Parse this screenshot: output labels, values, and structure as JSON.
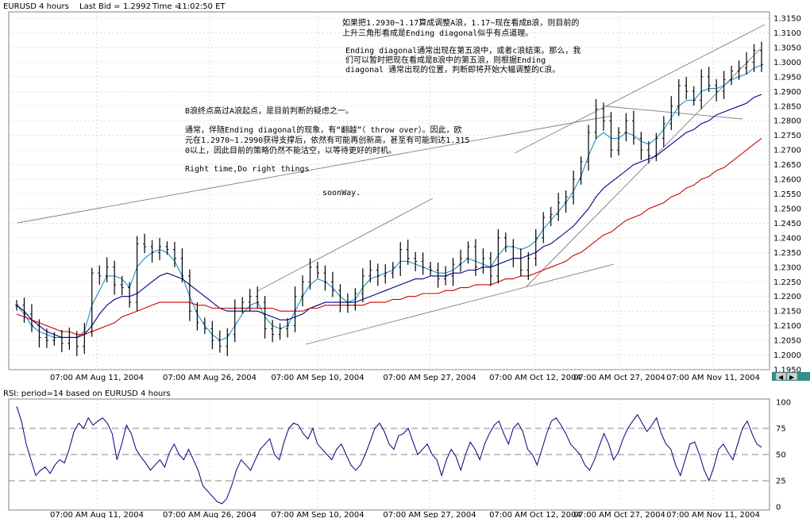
{
  "header": {
    "symbol": "EURUSD 4 hours",
    "last_bid_label": "Last Bid =",
    "last_bid": "1.2992",
    "time_label": "Time =",
    "time": "11:02:50 ET"
  },
  "rsi_header": "RSI: period=14 based on EURUSD 4 hours",
  "annotations": {
    "note1": [
      "如果把1.2930~1.17算成调整A浪，1.17~现在看成B浪，则目前的",
      "上升三角形看成是Ending diagonal似乎有点道理。"
    ],
    "note2": [
      "Ending diagonal通常出现在第五浪中，或者c浪结束。那么，我",
      "们可以暂时把现在看成是B浪中的第五浪，则根据Ending",
      "diagonal 通常出现的位置，判断即将开始大幅调整的C浪。"
    ],
    "note3": [
      "B浪终点高过A浪起点，是目前判断的疑虑之一。"
    ],
    "note4": [
      "通常，伴随Ending diagonal的现象，有“翻越”（ throw over）。因此，欧",
      "元在1.2970~1.2990获得支撑后，依然有可能再创新高，甚至有可能到达1.315",
      "0以上，因此目前的策略仍然不能沽空，以等待更好的时机。"
    ],
    "note5": [
      "Right time,Do right things"
    ],
    "signature": [
      "soonWay."
    ]
  },
  "colors": {
    "price": "#000000",
    "ma_fast": "#1e90c8",
    "ma_mid": "#000080",
    "ma_slow": "#cc0000",
    "rsi": "#000080",
    "trendline": "#808080",
    "grid": "#c8c8c8",
    "scrollbar": "#2f8f8f"
  },
  "chart_data": [
    {
      "type": "line",
      "subtype": "ohlc",
      "title": "EURUSD 4 hours",
      "x_ticks": [
        "07:00 AM Aug 11, 2004",
        "07:00 AM Aug 26, 2004",
        "07:00 AM Sep 10, 2004",
        "07:00 AM Sep 27, 2004",
        "07:00 AM Oct 12, 2004",
        "07:00 AM Oct 27, 2004",
        "07:00 AM Nov 11, 2004"
      ],
      "y_ticks": [
        "1.1950",
        "1.2000",
        "1.2050",
        "1.2100",
        "1.2150",
        "1.2200",
        "1.2250",
        "1.2300",
        "1.2350",
        "1.2400",
        "1.2450",
        "1.2500",
        "1.2550",
        "1.2600",
        "1.2650",
        "1.2700",
        "1.2750",
        "1.2800",
        "1.2850",
        "1.2900",
        "1.2950",
        "1.3000",
        "1.3050",
        "1.3100",
        "1.3150"
      ],
      "ylim": [
        1.195,
        1.315
      ],
      "grid": true,
      "series": [
        {
          "values": [
            1.217,
            1.214,
            1.21,
            1.206,
            1.205,
            1.206,
            1.204,
            1.206,
            1.203,
            1.208,
            1.228,
            1.227,
            1.23,
            1.224,
            1.223,
            1.218,
            1.238,
            1.237,
            1.235,
            1.237,
            1.236,
            1.233,
            1.227,
            1.215,
            1.211,
            1.209,
            1.205,
            1.203,
            1.207,
            1.216,
            1.218,
            1.22,
            1.218,
            1.209,
            1.207,
            1.209,
            1.21,
            1.22,
            1.225,
            1.23,
            1.228,
            1.225,
            1.222,
            1.218,
            1.217,
            1.221,
            1.227,
            1.229,
            1.227,
            1.228,
            1.23,
            1.236,
            1.233,
            1.232,
            1.23,
            1.229,
            1.226,
            1.227,
            1.231,
            1.233,
            1.237,
            1.23,
            1.233,
            1.227,
            1.24,
            1.237,
            1.233,
            1.229,
            1.233,
            1.24,
            1.247,
            1.248,
            1.252,
            1.254,
            1.26,
            1.266,
            1.276,
            1.284,
            1.28,
            1.27,
            1.276,
            1.28,
            1.274,
            1.27,
            1.268,
            1.274,
            1.279,
            1.285,
            1.292,
            1.29,
            1.287,
            1.295,
            1.292,
            1.29,
            1.294,
            1.297,
            1.298,
            1.3,
            1.304,
            1.2992
          ]
        },
        {
          "values": [
            1.217,
            1.214,
            1.21,
            1.208,
            1.207,
            1.206,
            1.206,
            1.206,
            1.206,
            1.208,
            1.217,
            1.222,
            1.227,
            1.227,
            1.226,
            1.223,
            1.23,
            1.233,
            1.235,
            1.236,
            1.235,
            1.232,
            1.227,
            1.22,
            1.214,
            1.21,
            1.207,
            1.205,
            1.206,
            1.21,
            1.214,
            1.217,
            1.218,
            1.213,
            1.21,
            1.209,
            1.21,
            1.215,
            1.22,
            1.224,
            1.226,
            1.225,
            1.223,
            1.22,
            1.218,
            1.219,
            1.223,
            1.226,
            1.227,
            1.228,
            1.229,
            1.232,
            1.232,
            1.231,
            1.23,
            1.229,
            1.228,
            1.228,
            1.229,
            1.231,
            1.233,
            1.232,
            1.231,
            1.23,
            1.234,
            1.237,
            1.237,
            1.236,
            1.237,
            1.239,
            1.243,
            1.246,
            1.249,
            1.252,
            1.256,
            1.261,
            1.268,
            1.274,
            1.276,
            1.274,
            1.274,
            1.276,
            1.275,
            1.273,
            1.272,
            1.274,
            1.277,
            1.281,
            1.285,
            1.287,
            1.287,
            1.29,
            1.291,
            1.291,
            1.292,
            1.294,
            1.295,
            1.296,
            1.298,
            1.299
          ]
        },
        {
          "values": [
            1.217,
            1.215,
            1.212,
            1.21,
            1.208,
            1.207,
            1.206,
            1.206,
            1.206,
            1.207,
            1.21,
            1.214,
            1.217,
            1.219,
            1.22,
            1.22,
            1.221,
            1.223,
            1.225,
            1.227,
            1.228,
            1.227,
            1.226,
            1.224,
            1.222,
            1.22,
            1.218,
            1.216,
            1.215,
            1.215,
            1.215,
            1.215,
            1.215,
            1.214,
            1.213,
            1.212,
            1.212,
            1.213,
            1.214,
            1.216,
            1.217,
            1.218,
            1.218,
            1.218,
            1.218,
            1.218,
            1.219,
            1.22,
            1.221,
            1.222,
            1.223,
            1.224,
            1.225,
            1.226,
            1.226,
            1.227,
            1.227,
            1.227,
            1.228,
            1.228,
            1.229,
            1.229,
            1.23,
            1.23,
            1.231,
            1.232,
            1.233,
            1.233,
            1.234,
            1.235,
            1.237,
            1.238,
            1.24,
            1.242,
            1.244,
            1.247,
            1.25,
            1.254,
            1.257,
            1.259,
            1.261,
            1.263,
            1.265,
            1.266,
            1.267,
            1.268,
            1.27,
            1.272,
            1.274,
            1.276,
            1.277,
            1.279,
            1.28,
            1.282,
            1.283,
            1.284,
            1.285,
            1.286,
            1.288,
            1.289
          ]
        },
        {
          "values": [
            1.214,
            1.213,
            1.212,
            1.211,
            1.21,
            1.209,
            1.208,
            1.208,
            1.207,
            1.207,
            1.208,
            1.209,
            1.21,
            1.211,
            1.213,
            1.214,
            1.215,
            1.216,
            1.217,
            1.218,
            1.218,
            1.218,
            1.218,
            1.218,
            1.217,
            1.217,
            1.216,
            1.216,
            1.216,
            1.216,
            1.216,
            1.216,
            1.216,
            1.216,
            1.216,
            1.215,
            1.215,
            1.215,
            1.215,
            1.216,
            1.216,
            1.217,
            1.217,
            1.217,
            1.217,
            1.217,
            1.217,
            1.218,
            1.218,
            1.218,
            1.219,
            1.219,
            1.22,
            1.22,
            1.221,
            1.221,
            1.221,
            1.222,
            1.222,
            1.223,
            1.223,
            1.224,
            1.224,
            1.224,
            1.225,
            1.226,
            1.226,
            1.227,
            1.227,
            1.228,
            1.229,
            1.23,
            1.231,
            1.232,
            1.234,
            1.235,
            1.237,
            1.239,
            1.241,
            1.242,
            1.244,
            1.246,
            1.247,
            1.248,
            1.25,
            1.251,
            1.252,
            1.254,
            1.255,
            1.257,
            1.258,
            1.26,
            1.261,
            1.263,
            1.264,
            1.266,
            1.268,
            1.27,
            1.272,
            1.274
          ]
        }
      ]
    },
    {
      "type": "line",
      "title": "RSI: period=14 based on EURUSD 4 hours",
      "x_ticks": [
        "07:00 AM Aug 11, 2004",
        "07:00 AM Aug 26, 2004",
        "07:00 AM Sep 10, 2004",
        "07:00 AM Sep 27, 2004",
        "07:00 AM Oct 12, 2004",
        "07:00 AM Oct 27, 2004",
        "07:00 AM Nov 11, 2004"
      ],
      "y_ticks": [
        "0",
        "25",
        "50",
        "75",
        "100"
      ],
      "ylim": [
        0,
        100
      ],
      "reference_lines": [
        25,
        50,
        75
      ],
      "series": [
        {
          "values": [
            96,
            82,
            60,
            45,
            30,
            35,
            38,
            32,
            40,
            45,
            42,
            55,
            72,
            80,
            75,
            85,
            78,
            82,
            85,
            80,
            70,
            45,
            60,
            78,
            70,
            55,
            48,
            42,
            35,
            40,
            45,
            38,
            52,
            60,
            50,
            45,
            55,
            45,
            35,
            20,
            15,
            10,
            5,
            3,
            8,
            20,
            35,
            45,
            40,
            35,
            45,
            55,
            60,
            65,
            50,
            45,
            62,
            75,
            80,
            78,
            70,
            65,
            75,
            60,
            55,
            50,
            45,
            55,
            60,
            50,
            40,
            35,
            40,
            50,
            62,
            75,
            80,
            72,
            60,
            55,
            68,
            70,
            75,
            62,
            50,
            55,
            60,
            50,
            45,
            30,
            45,
            55,
            48,
            35,
            50,
            62,
            55,
            45,
            60,
            70,
            78,
            82,
            70,
            60,
            75,
            80,
            72,
            55,
            50,
            40,
            55,
            70,
            82,
            85,
            78,
            70,
            60,
            55,
            50,
            40,
            35,
            45,
            58,
            70,
            60,
            45,
            52,
            65,
            75,
            82,
            88,
            80,
            72,
            78,
            85,
            70,
            60,
            55,
            40,
            30,
            45,
            60,
            62,
            50,
            35,
            25,
            38,
            55,
            60,
            52,
            45,
            60,
            75,
            82,
            70,
            60,
            57
          ]
        }
      ]
    }
  ]
}
